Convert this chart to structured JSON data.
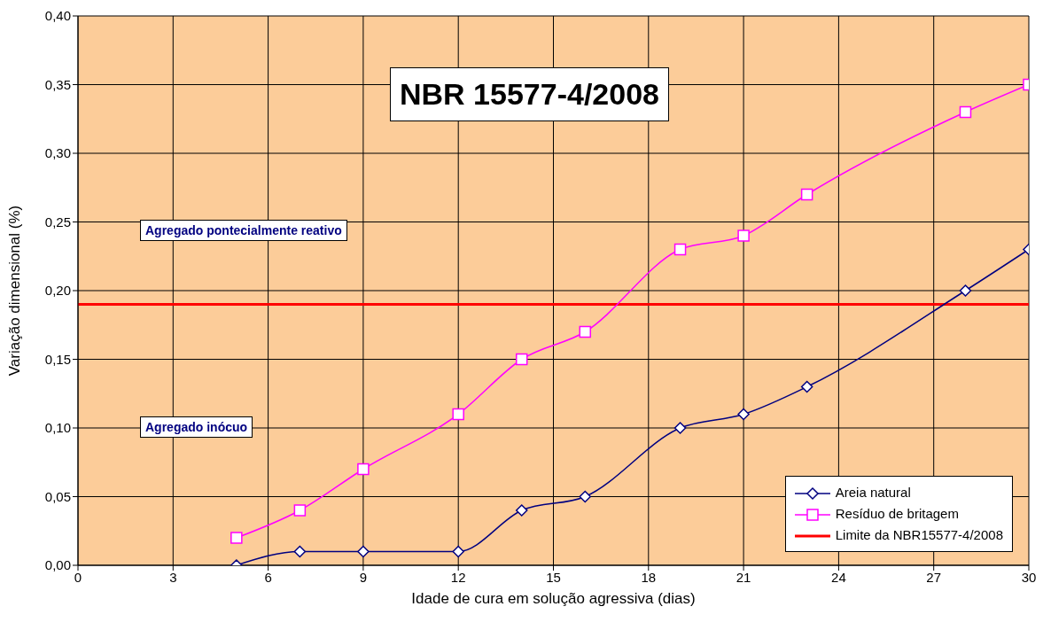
{
  "chart_data": {
    "type": "line",
    "title": "NBR 15577-4/2008",
    "xlabel": "Idade de cura em solução agressiva (dias)",
    "ylabel": "Variação dimensional (%)",
    "xlim": [
      0,
      30
    ],
    "xticks": [
      0,
      3,
      6,
      9,
      12,
      15,
      18,
      21,
      24,
      27,
      30
    ],
    "ylim": [
      0,
      0.4
    ],
    "yticks": [
      {
        "value": 0,
        "label": "0,00"
      },
      {
        "value": 0.05,
        "label": "0,05"
      },
      {
        "value": 0.1,
        "label": "0,10"
      },
      {
        "value": 0.15,
        "label": "0,15"
      },
      {
        "value": 0.2,
        "label": "0,20"
      },
      {
        "value": 0.25,
        "label": "0,25"
      },
      {
        "value": 0.3,
        "label": "0,30"
      },
      {
        "value": 0.35,
        "label": "0,35"
      },
      {
        "value": 0.4,
        "label": "0,40"
      }
    ],
    "grid": true,
    "legend": "bottom right",
    "series": [
      {
        "name": "Areia natural",
        "color": "#000080",
        "marker": "diamond",
        "x": [
          5,
          7,
          9,
          12,
          14,
          16,
          19,
          21,
          23,
          28,
          30
        ],
        "values": [
          0,
          0.01,
          0.01,
          0.01,
          0.04,
          0.05,
          0.1,
          0.11,
          0.13,
          0.2,
          0.23
        ]
      },
      {
        "name": "Resíduo de britagem",
        "color": "#ff00ff",
        "marker": "square",
        "x": [
          5,
          7,
          9,
          12,
          14,
          16,
          19,
          21,
          23,
          28,
          30
        ],
        "values": [
          0.02,
          0.04,
          0.07,
          0.11,
          0.15,
          0.17,
          0.23,
          0.24,
          0.27,
          0.33,
          0.35
        ]
      }
    ],
    "ref_lines": [
      {
        "axis": "y",
        "value": 0.19,
        "label": "Limite da NBR15577-4/2008",
        "color": "#ff0000"
      }
    ],
    "annotations": [
      "Agregado pontecialmente reativo",
      "Agregado inócuo"
    ]
  }
}
